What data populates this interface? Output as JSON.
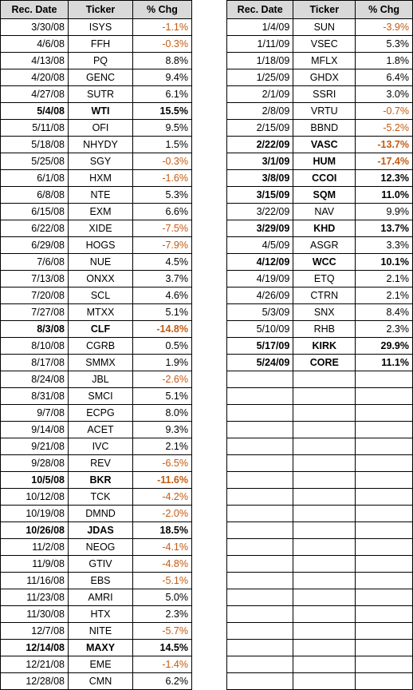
{
  "headers": [
    "Rec. Date",
    "Ticker",
    "% Chg"
  ],
  "colors": {
    "negative": "#c55a11",
    "positive": "#000000",
    "header_bg": "#d9d9d9"
  },
  "left_rows": [
    {
      "date": "3/30/08",
      "ticker": "ISYS",
      "chg": "-1.1%",
      "bold": false
    },
    {
      "date": "4/6/08",
      "ticker": "FFH",
      "chg": "-0.3%",
      "bold": false
    },
    {
      "date": "4/13/08",
      "ticker": "PQ",
      "chg": "8.8%",
      "bold": false
    },
    {
      "date": "4/20/08",
      "ticker": "GENC",
      "chg": "9.4%",
      "bold": false
    },
    {
      "date": "4/27/08",
      "ticker": "SUTR",
      "chg": "6.1%",
      "bold": false
    },
    {
      "date": "5/4/08",
      "ticker": "WTI",
      "chg": "15.5%",
      "bold": true
    },
    {
      "date": "5/11/08",
      "ticker": "OFI",
      "chg": "9.5%",
      "bold": false
    },
    {
      "date": "5/18/08",
      "ticker": "NHYDY",
      "chg": "1.5%",
      "bold": false
    },
    {
      "date": "5/25/08",
      "ticker": "SGY",
      "chg": "-0.3%",
      "bold": false
    },
    {
      "date": "6/1/08",
      "ticker": "HXM",
      "chg": "-1.6%",
      "bold": false
    },
    {
      "date": "6/8/08",
      "ticker": "NTE",
      "chg": "5.3%",
      "bold": false
    },
    {
      "date": "6/15/08",
      "ticker": "EXM",
      "chg": "6.6%",
      "bold": false
    },
    {
      "date": "6/22/08",
      "ticker": "XIDE",
      "chg": "-7.5%",
      "bold": false
    },
    {
      "date": "6/29/08",
      "ticker": "HOGS",
      "chg": "-7.9%",
      "bold": false
    },
    {
      "date": "7/6/08",
      "ticker": "NUE",
      "chg": "4.5%",
      "bold": false
    },
    {
      "date": "7/13/08",
      "ticker": "ONXX",
      "chg": "3.7%",
      "bold": false
    },
    {
      "date": "7/20/08",
      "ticker": "SCL",
      "chg": "4.6%",
      "bold": false
    },
    {
      "date": "7/27/08",
      "ticker": "MTXX",
      "chg": "5.1%",
      "bold": false
    },
    {
      "date": "8/3/08",
      "ticker": "CLF",
      "chg": "-14.8%",
      "bold": true
    },
    {
      "date": "8/10/08",
      "ticker": "CGRB",
      "chg": "0.5%",
      "bold": false
    },
    {
      "date": "8/17/08",
      "ticker": "SMMX",
      "chg": "1.9%",
      "bold": false
    },
    {
      "date": "8/24/08",
      "ticker": "JBL",
      "chg": "-2.6%",
      "bold": false
    },
    {
      "date": "8/31/08",
      "ticker": "SMCI",
      "chg": "5.1%",
      "bold": false
    },
    {
      "date": "9/7/08",
      "ticker": "ECPG",
      "chg": "8.0%",
      "bold": false
    },
    {
      "date": "9/14/08",
      "ticker": "ACET",
      "chg": "9.3%",
      "bold": false
    },
    {
      "date": "9/21/08",
      "ticker": "IVC",
      "chg": "2.1%",
      "bold": false
    },
    {
      "date": "9/28/08",
      "ticker": "REV",
      "chg": "-6.5%",
      "bold": false
    },
    {
      "date": "10/5/08",
      "ticker": "BKR",
      "chg": "-11.6%",
      "bold": true
    },
    {
      "date": "10/12/08",
      "ticker": "TCK",
      "chg": "-4.2%",
      "bold": false
    },
    {
      "date": "10/19/08",
      "ticker": "DMND",
      "chg": "-2.0%",
      "bold": false
    },
    {
      "date": "10/26/08",
      "ticker": "JDAS",
      "chg": "18.5%",
      "bold": true
    },
    {
      "date": "11/2/08",
      "ticker": "NEOG",
      "chg": "-4.1%",
      "bold": false
    },
    {
      "date": "11/9/08",
      "ticker": "GTIV",
      "chg": "-4.8%",
      "bold": false
    },
    {
      "date": "11/16/08",
      "ticker": "EBS",
      "chg": "-5.1%",
      "bold": false
    },
    {
      "date": "11/23/08",
      "ticker": "AMRI",
      "chg": "5.0%",
      "bold": false
    },
    {
      "date": "11/30/08",
      "ticker": "HTX",
      "chg": "2.3%",
      "bold": false
    },
    {
      "date": "12/7/08",
      "ticker": "NITE",
      "chg": "-5.7%",
      "bold": false
    },
    {
      "date": "12/14/08",
      "ticker": "MAXY",
      "chg": "14.5%",
      "bold": true
    },
    {
      "date": "12/21/08",
      "ticker": "EME",
      "chg": "-1.4%",
      "bold": false
    },
    {
      "date": "12/28/08",
      "ticker": "CMN",
      "chg": "6.2%",
      "bold": false
    }
  ],
  "right_rows": [
    {
      "date": "1/4/09",
      "ticker": "SUN",
      "chg": "-3.9%",
      "bold": false
    },
    {
      "date": "1/11/09",
      "ticker": "VSEC",
      "chg": "5.3%",
      "bold": false
    },
    {
      "date": "1/18/09",
      "ticker": "MFLX",
      "chg": "1.8%",
      "bold": false
    },
    {
      "date": "1/25/09",
      "ticker": "GHDX",
      "chg": "6.4%",
      "bold": false
    },
    {
      "date": "2/1/09",
      "ticker": "SSRI",
      "chg": "3.0%",
      "bold": false
    },
    {
      "date": "2/8/09",
      "ticker": "VRTU",
      "chg": "-0.7%",
      "bold": false
    },
    {
      "date": "2/15/09",
      "ticker": "BBND",
      "chg": "-5.2%",
      "bold": false
    },
    {
      "date": "2/22/09",
      "ticker": "VASC",
      "chg": "-13.7%",
      "bold": true
    },
    {
      "date": "3/1/09",
      "ticker": "HUM",
      "chg": "-17.4%",
      "bold": true
    },
    {
      "date": "3/8/09",
      "ticker": "CCOI",
      "chg": "12.3%",
      "bold": true
    },
    {
      "date": "3/15/09",
      "ticker": "SQM",
      "chg": "11.0%",
      "bold": true
    },
    {
      "date": "3/22/09",
      "ticker": "NAV",
      "chg": "9.9%",
      "bold": false
    },
    {
      "date": "3/29/09",
      "ticker": "KHD",
      "chg": "13.7%",
      "bold": true
    },
    {
      "date": "4/5/09",
      "ticker": "ASGR",
      "chg": "3.3%",
      "bold": false
    },
    {
      "date": "4/12/09",
      "ticker": "WCC",
      "chg": "10.1%",
      "bold": true
    },
    {
      "date": "4/19/09",
      "ticker": "ETQ",
      "chg": "2.1%",
      "bold": false
    },
    {
      "date": "4/26/09",
      "ticker": "CTRN",
      "chg": "2.1%",
      "bold": false
    },
    {
      "date": "5/3/09",
      "ticker": "SNX",
      "chg": "8.4%",
      "bold": false
    },
    {
      "date": "5/10/09",
      "ticker": "RHB",
      "chg": "2.3%",
      "bold": false
    },
    {
      "date": "5/17/09",
      "ticker": "KIRK",
      "chg": "29.9%",
      "bold": true
    },
    {
      "date": "5/24/09",
      "ticker": "CORE",
      "chg": "11.1%",
      "bold": true
    }
  ],
  "right_empty_rows": 19
}
